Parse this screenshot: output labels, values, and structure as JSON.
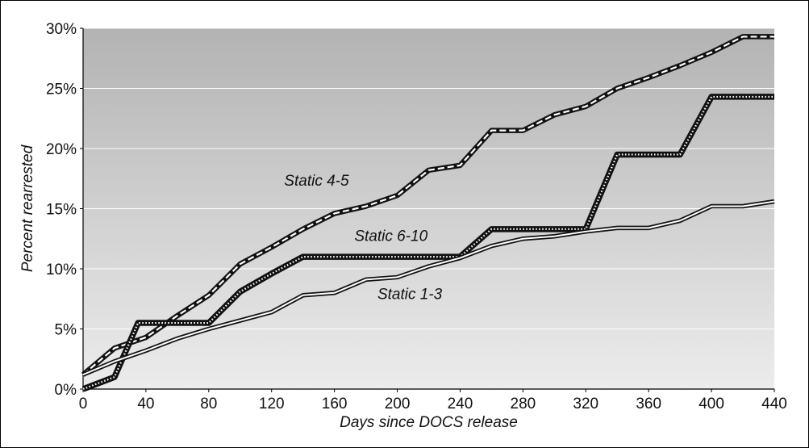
{
  "chart_data": {
    "type": "line",
    "title": "",
    "xlabel": "Days since DOCS release",
    "ylabel": "Percent rearrested",
    "xlim": [
      0,
      440
    ],
    "ylim": [
      0,
      30
    ],
    "x_ticks": [
      "0",
      "40",
      "80",
      "120",
      "160",
      "200",
      "240",
      "280",
      "320",
      "360",
      "400",
      "440"
    ],
    "y_ticks": [
      "0%",
      "5%",
      "10%",
      "15%",
      "20%",
      "25%",
      "30%"
    ],
    "grid": "horizontal",
    "background": "gradient gray",
    "series": [
      {
        "name": "Static 4-5",
        "style": "dashed-double",
        "x": [
          0,
          20,
          40,
          60,
          80,
          100,
          120,
          140,
          160,
          180,
          200,
          220,
          240,
          260,
          280,
          300,
          320,
          340,
          360,
          380,
          400,
          420,
          440
        ],
        "y": [
          1.2,
          3.4,
          4.3,
          6.1,
          7.8,
          10.4,
          11.8,
          13.3,
          14.6,
          15.2,
          16.1,
          18.2,
          18.6,
          21.5,
          21.5,
          22.8,
          23.5,
          25.0,
          25.9,
          26.9,
          28.0,
          29.3,
          29.3
        ]
      },
      {
        "name": "Static 6-10",
        "style": "dotted-thick",
        "x": [
          0,
          20,
          35,
          40,
          60,
          80,
          100,
          120,
          140,
          160,
          200,
          240,
          260,
          280,
          320,
          340,
          360,
          380,
          400,
          420,
          440
        ],
        "y": [
          0.0,
          1.0,
          5.5,
          5.5,
          5.5,
          5.5,
          8.1,
          9.6,
          11.0,
          11.0,
          11.0,
          11.0,
          13.3,
          13.3,
          13.3,
          19.5,
          19.5,
          19.5,
          24.3,
          24.3,
          24.3
        ]
      },
      {
        "name": "Static 1-3",
        "style": "solid-double",
        "x": [
          0,
          20,
          40,
          60,
          80,
          100,
          120,
          140,
          160,
          180,
          200,
          220,
          240,
          260,
          280,
          300,
          320,
          340,
          360,
          380,
          400,
          420,
          440
        ],
        "y": [
          1.2,
          2.3,
          3.2,
          4.2,
          5.0,
          5.7,
          6.4,
          7.8,
          8.0,
          9.1,
          9.3,
          10.2,
          10.9,
          11.9,
          12.5,
          12.7,
          13.1,
          13.4,
          13.4,
          14.0,
          15.2,
          15.2,
          15.6
        ]
      }
    ]
  }
}
